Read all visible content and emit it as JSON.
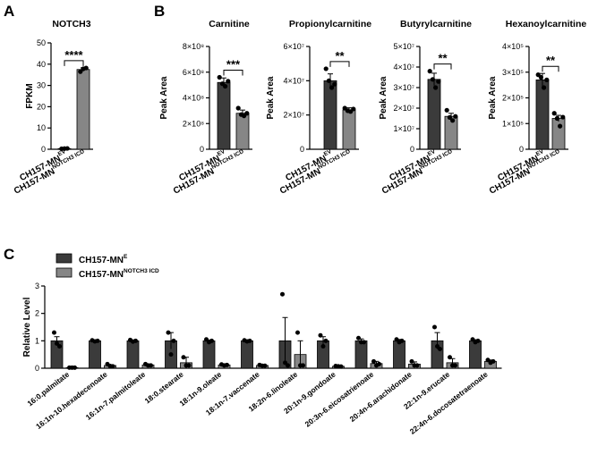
{
  "figure": {
    "panel_labels": [
      "A",
      "B",
      "C"
    ],
    "colors": {
      "dark": "#3b3b3b",
      "gray": "#868686",
      "axis": "#000000",
      "dot": "#000000"
    }
  },
  "chart_data": [
    {
      "type": "bar",
      "panel": "A",
      "title": "NOTCH3",
      "ylabel": "FPKM",
      "ylim": [
        0,
        50
      ],
      "yticks": [
        "0",
        "10",
        "20",
        "30",
        "40",
        "50"
      ],
      "groups": [
        {
          "base": "CH157-MN",
          "sup": "EV",
          "value": 0.3,
          "err": 0.2,
          "points": [
            0.2,
            0.3,
            0.4
          ]
        },
        {
          "base": "CH157-MN",
          "sup": "NOTCH3 ICD",
          "value": 37.5,
          "err": 0.8,
          "points": [
            36.5,
            37.8,
            38.2
          ]
        }
      ],
      "significance": "****"
    },
    {
      "type": "bar",
      "panel": "B",
      "title": "Carnitine",
      "ylabel": "Peak Area",
      "ylim": [
        0,
        8
      ],
      "yticks": [
        "0",
        "2×10⁸",
        "4×10⁸",
        "6×10⁸",
        "8×10⁸"
      ],
      "groups": [
        {
          "base": "CH157-MN",
          "sup": "EV",
          "value": 5.2,
          "err": 0.35,
          "points": [
            5.6,
            5.1,
            4.9,
            5.3
          ]
        },
        {
          "base": "CH157-MN",
          "sup": "NOTCH3 ICD",
          "value": 2.8,
          "err": 0.25,
          "points": [
            3.2,
            2.7,
            2.6,
            2.8
          ]
        }
      ],
      "significance": "***"
    },
    {
      "type": "bar",
      "panel": "B",
      "title": "Propionylcarnitine",
      "ylabel": "Peak Area",
      "ylim": [
        0,
        6
      ],
      "yticks": [
        "0",
        "2×10⁷",
        "4×10⁷",
        "6×10⁷"
      ],
      "groups": [
        {
          "base": "CH157-MN",
          "sup": "EV",
          "value": 4.0,
          "err": 0.4,
          "points": [
            4.7,
            4.0,
            3.6,
            3.8
          ]
        },
        {
          "base": "CH157-MN",
          "sup": "NOTCH3 ICD",
          "value": 2.3,
          "err": 0.12,
          "points": [
            2.4,
            2.25,
            2.2,
            2.35
          ]
        }
      ],
      "significance": "**"
    },
    {
      "type": "bar",
      "panel": "B",
      "title": "Butyrylcarnitine",
      "ylabel": "Peak Area",
      "ylim": [
        0,
        5
      ],
      "yticks": [
        "0",
        "1×10⁷",
        "2×10⁷",
        "3×10⁷",
        "4×10⁷",
        "5×10⁷"
      ],
      "groups": [
        {
          "base": "CH157-MN",
          "sup": "EV",
          "value": 3.4,
          "err": 0.3,
          "points": [
            3.8,
            3.4,
            3.0,
            3.3
          ]
        },
        {
          "base": "CH157-MN",
          "sup": "NOTCH3 ICD",
          "value": 1.6,
          "err": 0.15,
          "points": [
            1.9,
            1.55,
            1.4,
            1.6
          ]
        }
      ],
      "significance": "**"
    },
    {
      "type": "bar",
      "panel": "B",
      "title": "Hexanoylcarnitine",
      "ylabel": "Peak Area",
      "ylim": [
        0,
        4
      ],
      "yticks": [
        "0",
        "1×10⁵",
        "2×10⁵",
        "3×10⁵",
        "4×10⁵"
      ],
      "groups": [
        {
          "base": "CH157-MN",
          "sup": "EV",
          "value": 2.7,
          "err": 0.25,
          "points": [
            2.9,
            2.8,
            2.4,
            2.7
          ]
        },
        {
          "base": "CH157-MN",
          "sup": "NOTCH3 ICD",
          "value": 1.2,
          "err": 0.12,
          "points": [
            1.4,
            1.2,
            0.9,
            1.25
          ]
        }
      ],
      "significance": "**"
    },
    {
      "type": "bar",
      "panel": "C",
      "ylabel": "Relative Level",
      "ylim": [
        0,
        3
      ],
      "yticks": [
        "0",
        "1",
        "2",
        "3"
      ],
      "legend": [
        {
          "base": "CH157-MN",
          "sup": "E"
        },
        {
          "base": "CH157-MN",
          "sup": "NOTCH3 ICD"
        }
      ],
      "categories": [
        "16:0.palmitate",
        "16:1n-10.hexadecenoate",
        "16:1n-7.palmitoleate",
        "18:0.stearate",
        "18:1n-9.oleate",
        "18:1n-7.vaccenate",
        "18:2n-6.linoleate",
        "20:1n-9.gondoate",
        "20:3n-6.eicosatrienoate",
        "20:4n-6.arachidonate",
        "22:1n-9.erucate",
        "22:4n-6.docosatetraenoate"
      ],
      "series": [
        {
          "name": "CH157-MN E",
          "values": [
            1.0,
            1.0,
            1.0,
            1.0,
            1.0,
            1.0,
            1.0,
            1.0,
            1.0,
            1.0,
            1.0,
            1.0
          ],
          "err": [
            0.15,
            0.03,
            0.03,
            0.3,
            0.03,
            0.02,
            0.85,
            0.15,
            0.07,
            0.05,
            0.3,
            0.04
          ],
          "points": [
            [
              1.3,
              0.9,
              0.8
            ],
            [
              1.02,
              0.98,
              1.0
            ],
            [
              1.03,
              0.97,
              1.0
            ],
            [
              1.3,
              0.5,
              1.0
            ],
            [
              1.05,
              0.95,
              1.0
            ],
            [
              1.02,
              0.98,
              1.0
            ],
            [
              2.7,
              0.2,
              0.1
            ],
            [
              1.2,
              0.8,
              1.0
            ],
            [
              1.1,
              0.95,
              0.95
            ],
            [
              1.05,
              0.95,
              1.0
            ],
            [
              1.5,
              0.8,
              0.7
            ],
            [
              1.05,
              0.95,
              1.0
            ]
          ]
        },
        {
          "name": "CH157-MN NOTCH3 ICD",
          "values": [
            0.02,
            0.1,
            0.12,
            0.2,
            0.12,
            0.1,
            0.5,
            0.07,
            0.17,
            0.15,
            0.2,
            0.25
          ],
          "err": [
            0.01,
            0.03,
            0.03,
            0.2,
            0.02,
            0.02,
            0.5,
            0.01,
            0.08,
            0.08,
            0.15,
            0.05
          ],
          "points": [
            [
              0.02,
              0.02,
              0.02
            ],
            [
              0.15,
              0.08,
              0.07
            ],
            [
              0.15,
              0.1,
              0.1
            ],
            [
              0.4,
              0.1,
              0.1
            ],
            [
              0.14,
              0.1,
              0.12
            ],
            [
              0.12,
              0.09,
              0.09
            ],
            [
              1.3,
              0.1,
              0.1
            ],
            [
              0.08,
              0.07,
              0.06
            ],
            [
              0.25,
              0.1,
              0.15
            ],
            [
              0.25,
              0.1,
              0.1
            ],
            [
              0.4,
              0.1,
              0.1
            ],
            [
              0.3,
              0.2,
              0.25
            ]
          ]
        }
      ]
    }
  ]
}
